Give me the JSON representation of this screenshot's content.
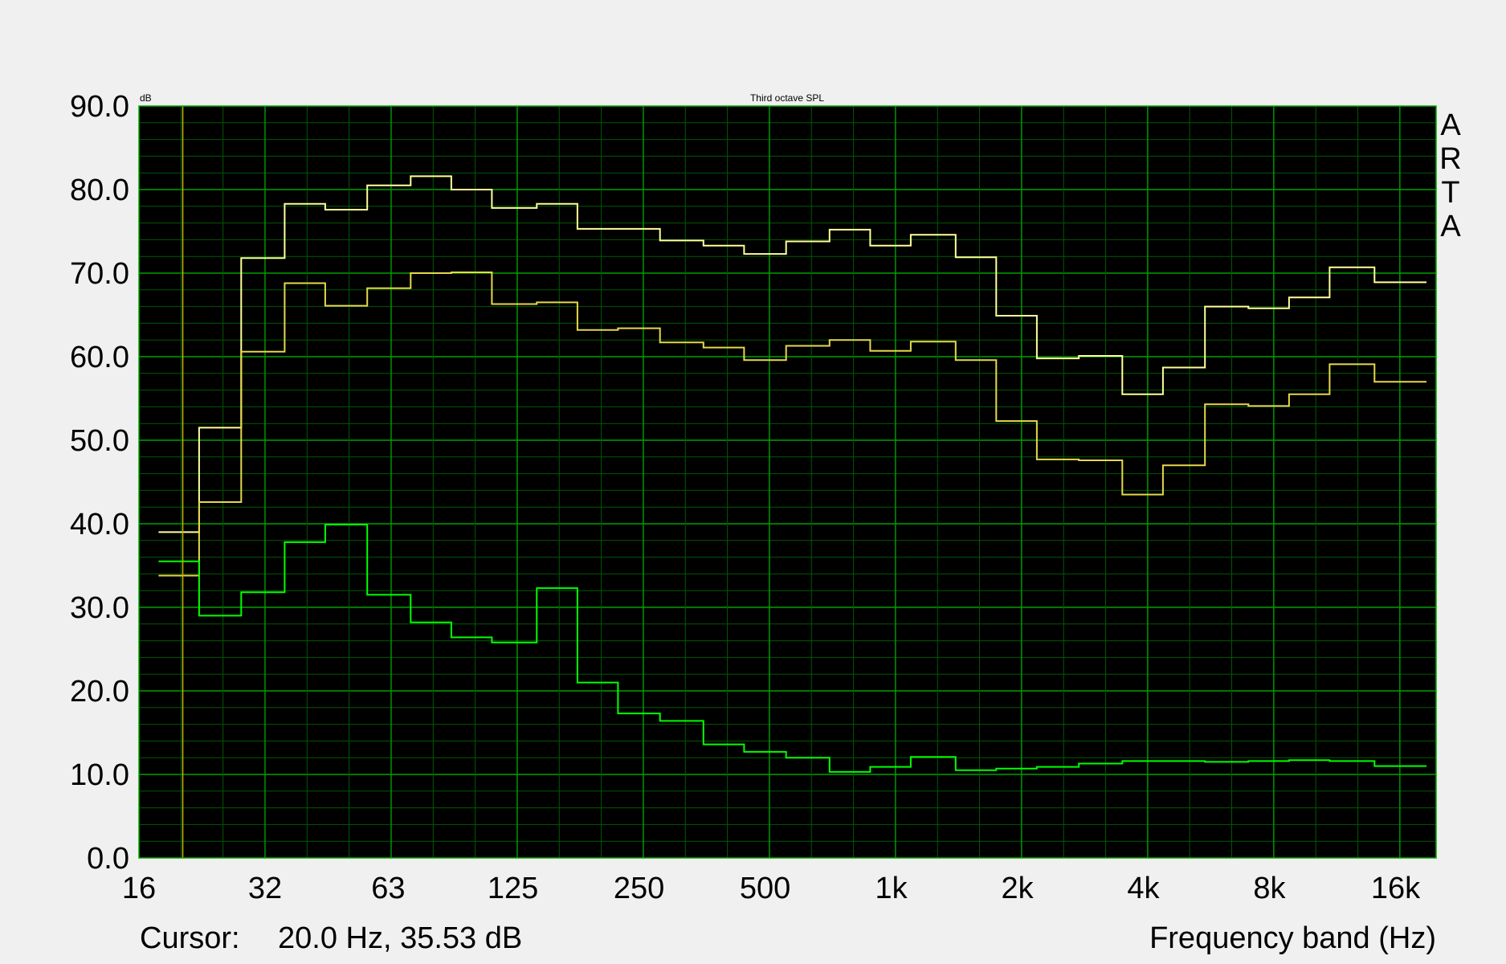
{
  "chart_data": {
    "type": "line",
    "title": "Third octave SPL",
    "yunit": "dB",
    "xlabel": "Frequency band (Hz)",
    "ylabel": "",
    "xscale": "log",
    "xlim": [
      16,
      20000
    ],
    "ylim": [
      0,
      90
    ],
    "grid": true,
    "logo": "ARTA",
    "cursor": {
      "label": "Cursor:",
      "value": "20.0 Hz, 35.53 dB",
      "frequency": 20
    },
    "ytick_labels": [
      "90.0",
      "80.0",
      "70.0",
      "60.0",
      "50.0",
      "40.0",
      "30.0",
      "20.0",
      "10.0",
      "0.0"
    ],
    "ytick_values": [
      90,
      80,
      70,
      60,
      50,
      40,
      30,
      20,
      10,
      0
    ],
    "xtick_labels": [
      "16",
      "32",
      "63",
      "125",
      "250",
      "500",
      "1k",
      "2k",
      "4k",
      "8k",
      "16k"
    ],
    "xtick_values": [
      16,
      32,
      63,
      125,
      250,
      500,
      1000,
      2000,
      4000,
      8000,
      16000
    ],
    "bands": [
      20,
      25,
      31.5,
      40,
      50,
      63,
      80,
      100,
      125,
      160,
      200,
      250,
      315,
      400,
      500,
      630,
      800,
      1000,
      1250,
      1600,
      2000,
      2500,
      3150,
      4000,
      5000,
      6300,
      8000,
      10000,
      12500,
      16000,
      20000
    ],
    "series": [
      {
        "color": "#ffff99",
        "values": [
          39.0,
          51.5,
          71.8,
          78.3,
          77.6,
          80.5,
          81.6,
          80.0,
          77.8,
          78.3,
          75.3,
          75.3,
          73.9,
          73.3,
          72.3,
          73.8,
          75.2,
          73.3,
          74.6,
          71.9,
          64.9,
          59.8,
          60.1,
          55.5,
          58.7,
          66.0,
          65.8,
          67.1,
          70.7,
          68.9,
          68.9
        ]
      },
      {
        "color": "#e6d84a",
        "values": [
          33.8,
          42.6,
          60.6,
          68.8,
          66.1,
          68.2,
          70.0,
          70.1,
          66.3,
          66.5,
          63.2,
          63.4,
          61.7,
          61.1,
          59.6,
          61.3,
          62.0,
          60.7,
          61.8,
          59.6,
          52.3,
          47.7,
          47.6,
          43.5,
          47.0,
          54.3,
          54.1,
          55.5,
          59.1,
          57.0,
          57.0
        ]
      },
      {
        "color": "#00ff00",
        "values": [
          35.5,
          29.0,
          31.8,
          37.8,
          39.9,
          31.5,
          28.2,
          26.4,
          25.8,
          32.3,
          21.0,
          17.3,
          16.4,
          13.6,
          12.7,
          12.0,
          10.3,
          10.9,
          12.1,
          10.5,
          10.7,
          10.9,
          11.3,
          11.6,
          11.6,
          11.5,
          11.6,
          11.7,
          11.6,
          11.0,
          11.0
        ]
      }
    ]
  }
}
